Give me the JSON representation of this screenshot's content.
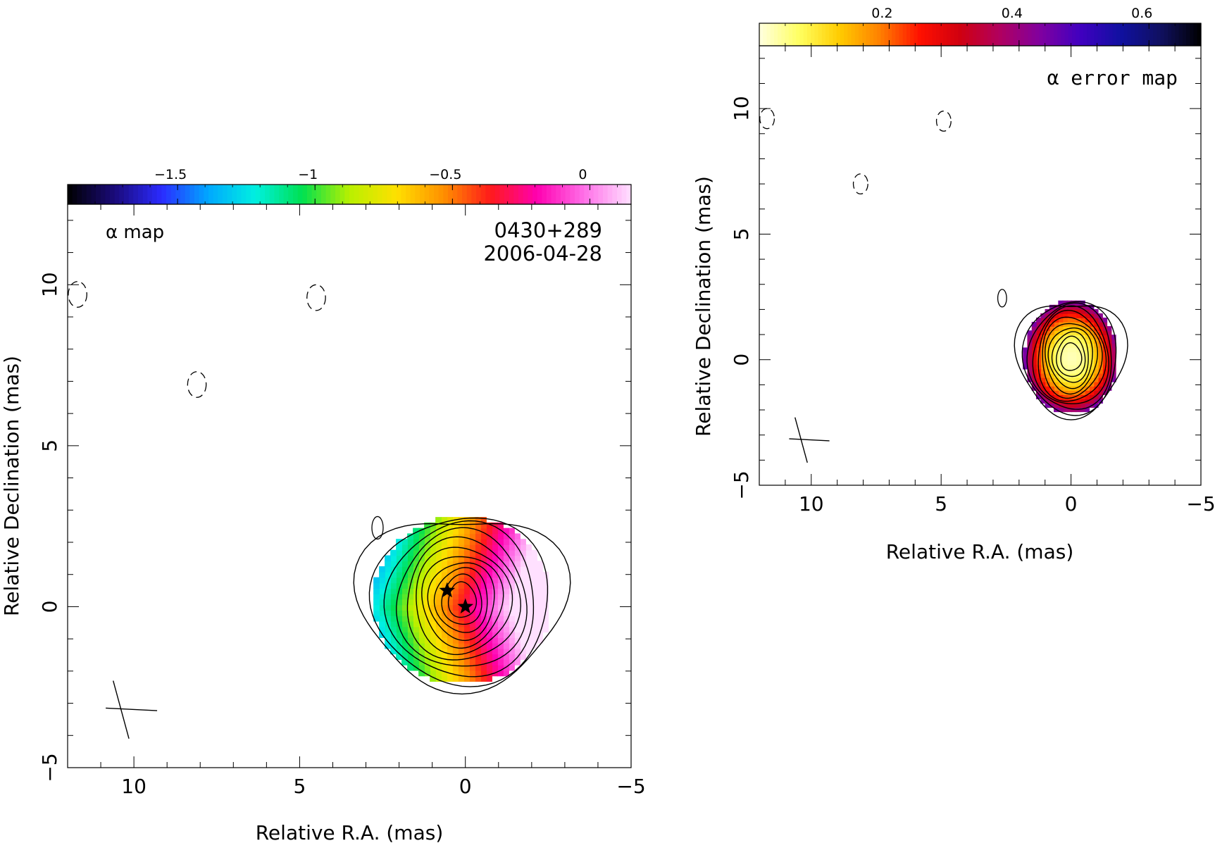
{
  "chart_data": [
    {
      "type": "heatmap",
      "subtype": "spectral index map with contour overlay",
      "annotation": "α map",
      "source": "0430+289",
      "date": "2006-04-28",
      "xlabel": "Relative R.A. (mas)",
      "ylabel": "Relative Declination (mas)",
      "xlim": [
        12,
        -5
      ],
      "ylim": [
        -5,
        12.5
      ],
      "xticks": [
        10,
        5,
        0,
        -5
      ],
      "xtick_labels": [
        "10",
        "5",
        "0",
        "−5"
      ],
      "yticks": [
        -5,
        0,
        5,
        10
      ],
      "ytick_labels": [
        "−5",
        "0",
        "5",
        "10"
      ],
      "colorbar": {
        "range": [
          -1.9,
          0.15
        ],
        "ticks": [
          -1.5,
          -1,
          -0.5,
          0
        ],
        "tick_labels": [
          "−1.5",
          "−1",
          "−0.5",
          "0"
        ],
        "colormap": [
          "#000000",
          "#1a0a7a",
          "#2b2bff",
          "#00a8ff",
          "#00f0e0",
          "#00e050",
          "#b8f000",
          "#ffe000",
          "#ff9000",
          "#ff1a1a",
          "#ff00b0",
          "#ff70e8",
          "#ffe0ff"
        ]
      },
      "color_field": {
        "center": [
          0,
          0
        ],
        "peak_value": -0.3,
        "edge_values": {
          "east": -1.2,
          "west": 0.1
        }
      },
      "contours": {
        "center": [
          0.1,
          0.2
        ],
        "radii_x": [
          3.0,
          2.68,
          2.25,
          1.95,
          1.7,
          1.45,
          1.22,
          1.0,
          0.8,
          0.6,
          0.42
        ],
        "radii_y": [
          2.8,
          2.6,
          2.4,
          2.15,
          1.9,
          1.65,
          1.42,
          1.2,
          1.0,
          0.78,
          0.55
        ]
      },
      "stars": [
        {
          "x": 0.55,
          "y": 0.5
        },
        {
          "x": 0.0,
          "y": 0.0
        }
      ],
      "negative_contours": [
        {
          "x": 11.7,
          "y": 9.7
        },
        {
          "x": 4.5,
          "y": 9.6
        },
        {
          "x": 8.1,
          "y": 6.9
        }
      ],
      "positive_blob": {
        "x": 2.65,
        "y": 2.45
      },
      "beam": {
        "x": 10.2,
        "y": -3.2
      }
    },
    {
      "type": "heatmap",
      "subtype": "spectral index error map with contour overlay",
      "annotation": "α error map",
      "xlabel": "Relative R.A. (mas)",
      "ylabel": "Relative Declination (mas)",
      "xlim": [
        12,
        -5
      ],
      "ylim": [
        -5,
        12.5
      ],
      "xticks": [
        10,
        5,
        0,
        -5
      ],
      "xtick_labels": [
        "10",
        "5",
        "0",
        "−5"
      ],
      "yticks": [
        -5,
        0,
        5,
        10
      ],
      "ytick_labels": [
        "−5",
        "0",
        "5",
        "10"
      ],
      "colorbar": {
        "range": [
          0.0,
          0.68
        ],
        "ticks": [
          0.2,
          0.4,
          0.6
        ],
        "tick_labels": [
          "0.2",
          "0.4",
          "0.6"
        ],
        "colormap": [
          "#ffffe0",
          "#ffff60",
          "#ffcc00",
          "#ff8000",
          "#ff1000",
          "#d00010",
          "#b00060",
          "#8000a0",
          "#4000c0",
          "#1010a0",
          "#101060",
          "#000000"
        ]
      },
      "color_field": {
        "center": [
          0,
          0
        ],
        "min_value": 0.02,
        "edge_value": 0.45
      },
      "contours": {
        "center": [
          0,
          0.1
        ],
        "radii_x": [
          2.0,
          1.8,
          1.62,
          1.45,
          1.3,
          1.15,
          1.0,
          0.85,
          0.7,
          0.55,
          0.4
        ],
        "radii_y": [
          2.4,
          2.25,
          2.1,
          1.95,
          1.8,
          1.6,
          1.4,
          1.2,
          1.0,
          0.8,
          0.55
        ]
      },
      "negative_contours": [
        {
          "x": 11.7,
          "y": 9.6
        },
        {
          "x": 4.9,
          "y": 9.5
        },
        {
          "x": 8.1,
          "y": 7.0
        }
      ],
      "positive_blob": {
        "x": 2.65,
        "y": 2.45
      },
      "beam": {
        "x": 10.2,
        "y": -3.2
      }
    }
  ]
}
